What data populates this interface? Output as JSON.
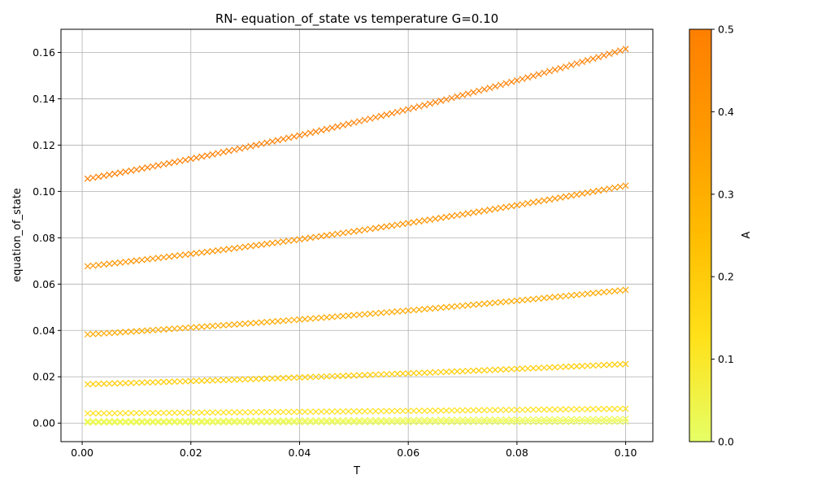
{
  "chart_data": {
    "type": "scatter",
    "title": "RN- equation_of_state vs temperature G=0.10",
    "xlabel": "T",
    "ylabel": "equation_of_state",
    "xlim": [
      -0.0039,
      0.105
    ],
    "ylim": [
      -0.008,
      0.17
    ],
    "x_ticks": [
      0.0,
      0.02,
      0.04,
      0.06,
      0.08,
      0.1
    ],
    "x_tick_labels": [
      "0.00",
      "0.02",
      "0.04",
      "0.06",
      "0.08",
      "0.10"
    ],
    "y_ticks": [
      0.0,
      0.02,
      0.04,
      0.06,
      0.08,
      0.1,
      0.12,
      0.14,
      0.16
    ],
    "y_tick_labels": [
      "0.00",
      "0.02",
      "0.04",
      "0.06",
      "0.08",
      "0.10",
      "0.12",
      "0.14",
      "0.16"
    ],
    "grid": true,
    "marker": "x",
    "x_range": [
      0.001,
      0.1
    ],
    "points_per_series": 100,
    "colorbar": {
      "label": "A",
      "range": [
        0.0,
        0.5
      ],
      "ticks": [
        0.0,
        0.1,
        0.2,
        0.3,
        0.4,
        0.5
      ],
      "tick_labels": [
        "0.0",
        "0.1",
        "0.2",
        "0.3",
        "0.4",
        "0.5"
      ],
      "colors": [
        "#e6ff66",
        "#ffe11a",
        "#ffbc00",
        "#ff9a00",
        "#ff7f00"
      ]
    },
    "series": [
      {
        "A": 0.02,
        "y_start": 0.0002,
        "y_end": 0.0006,
        "color": "#e8fa55"
      },
      {
        "A": 0.05,
        "y_start": 0.0008,
        "y_end": 0.0018,
        "color": "#effa4a"
      },
      {
        "A": 0.1,
        "y_start": 0.0042,
        "y_end": 0.0062,
        "color": "#ffe11a"
      },
      {
        "A": 0.2,
        "y_start": 0.0168,
        "y_end": 0.0255,
        "color": "#ffcc00"
      },
      {
        "A": 0.3,
        "y_start": 0.0383,
        "y_end": 0.0575,
        "color": "#ffaa00"
      },
      {
        "A": 0.4,
        "y_start": 0.0677,
        "y_end": 0.1025,
        "color": "#ff9400"
      },
      {
        "A": 0.5,
        "y_start": 0.1055,
        "y_end": 0.1615,
        "color": "#ff7f00"
      }
    ]
  }
}
